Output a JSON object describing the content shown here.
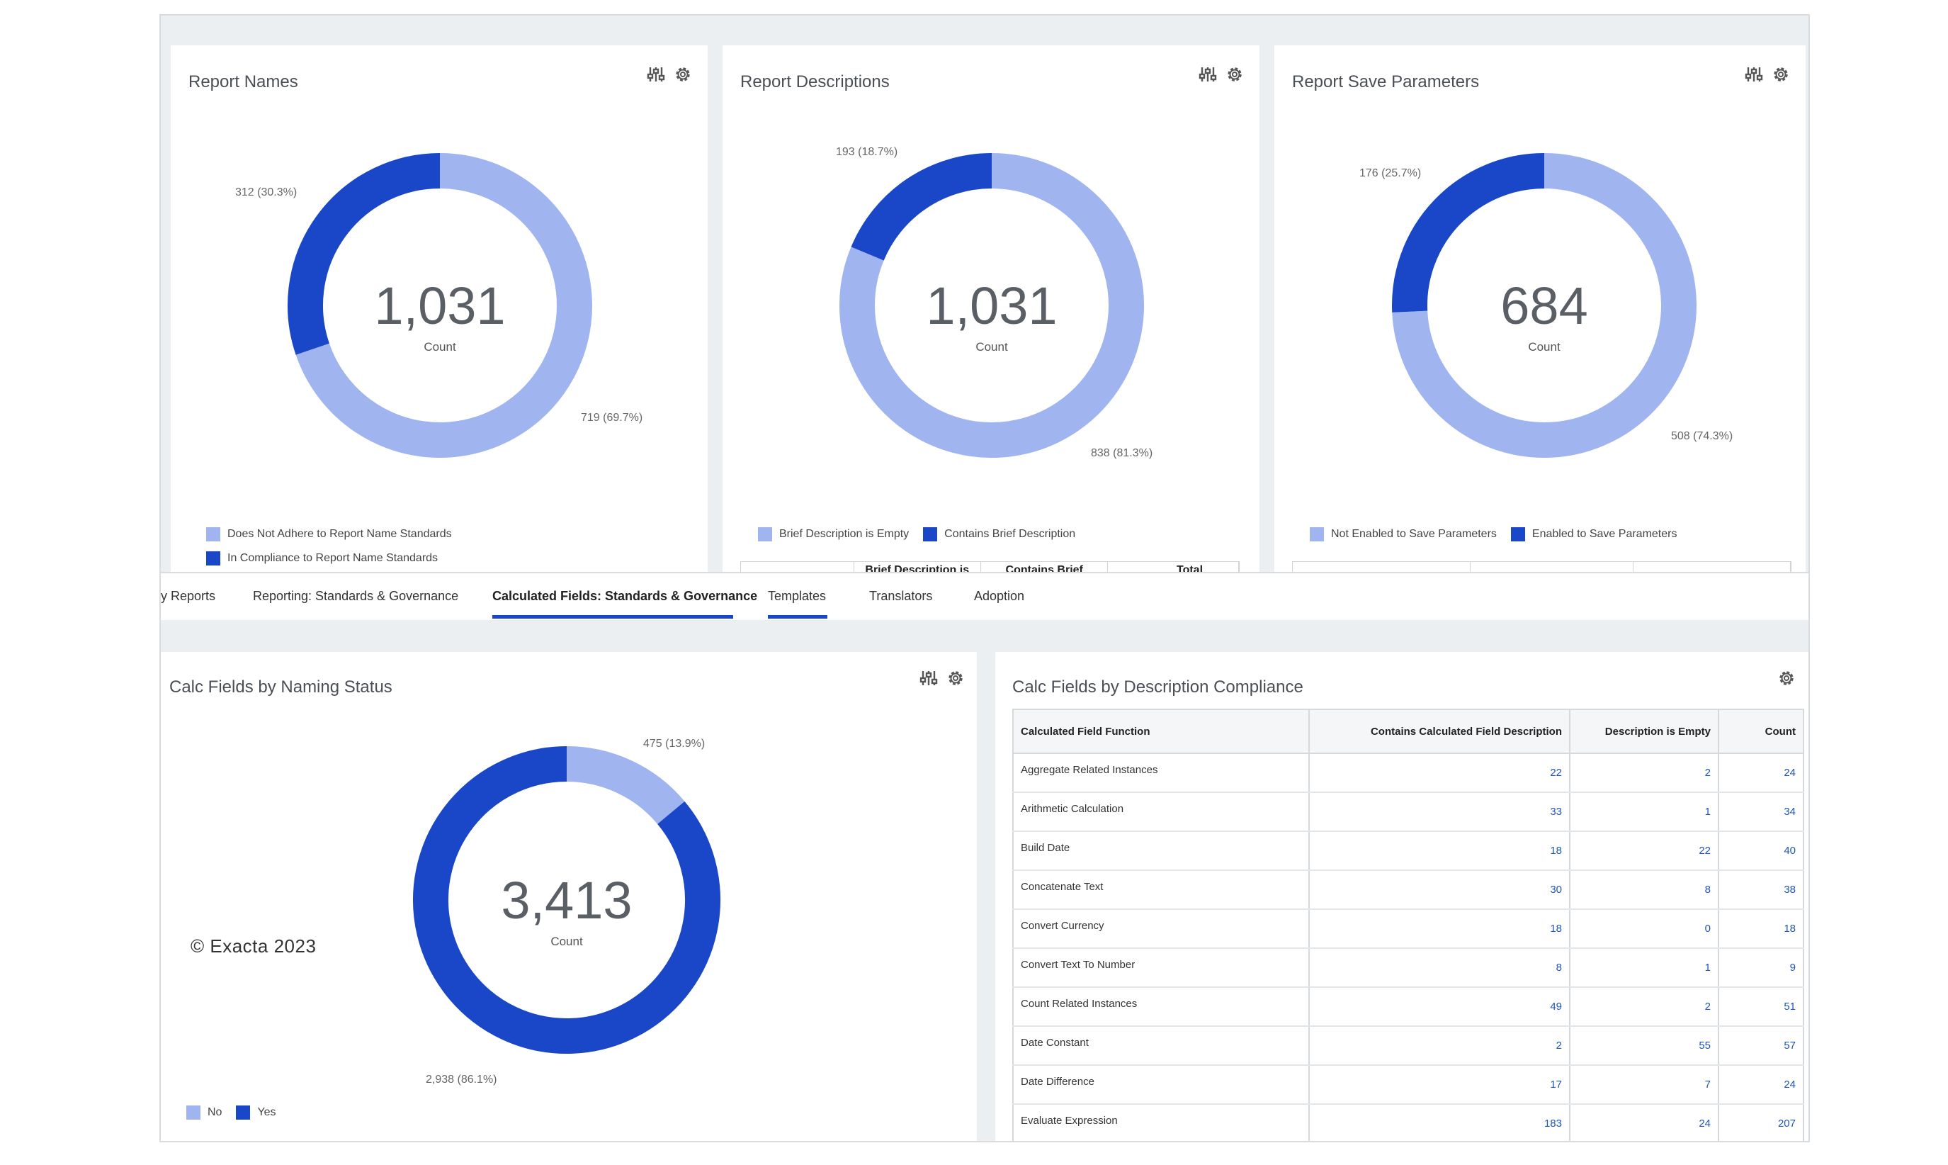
{
  "colors": {
    "light": "#a0b4f0",
    "dark": "#1a47c7",
    "link": "#1f55b5"
  },
  "cards": {
    "report_names": {
      "title": "Report Names",
      "total": "1,031",
      "sub": "Count",
      "slices": [
        {
          "label": "719 (69.7%)",
          "value": 719,
          "color": "#a0b4f0"
        },
        {
          "label": "312 (30.3%)",
          "value": 312,
          "color": "#1a47c7"
        }
      ],
      "legend": [
        "Does Not Adhere to Report Name Standards",
        "In Compliance to Report Name Standards"
      ]
    },
    "report_descriptions": {
      "title": "Report Descriptions",
      "total": "1,031",
      "sub": "Count",
      "slices": [
        {
          "label": "838 (81.3%)",
          "value": 838,
          "color": "#a0b4f0"
        },
        {
          "label": "193 (18.7%)",
          "value": 193,
          "color": "#1a47c7"
        }
      ],
      "legend": [
        "Brief Description is Empty",
        "Contains Brief Description"
      ],
      "table_headers": [
        "",
        "Brief Description is",
        "Contains Brief",
        "Total"
      ]
    },
    "report_save": {
      "title": "Report Save Parameters",
      "total": "684",
      "sub": "Count",
      "slices": [
        {
          "label": "508 (74.3%)",
          "value": 508,
          "color": "#a0b4f0"
        },
        {
          "label": "176 (25.7%)",
          "value": 176,
          "color": "#1a47c7"
        }
      ],
      "legend": [
        "Not Enabled to Save Parameters",
        "Enabled to Save Parameters"
      ]
    },
    "calc_naming": {
      "title": "Calc Fields by Naming Status",
      "total": "3,413",
      "sub": "Count",
      "slices": [
        {
          "label": "475 (13.9%)",
          "value": 475,
          "color": "#a0b4f0"
        },
        {
          "label": "2,938 (86.1%)",
          "value": 2938,
          "color": "#1a47c7"
        }
      ],
      "legend": [
        "No",
        "Yes"
      ],
      "copyright": "© Exacta 2023"
    },
    "calc_description": {
      "title": "Calc Fields by Description Compliance",
      "headers": [
        "Calculated Field Function",
        "Contains Calculated Field Description",
        "Description is Empty",
        "Count"
      ],
      "rows": [
        [
          "Aggregate Related Instances",
          "22",
          "2",
          "24"
        ],
        [
          "Arithmetic Calculation",
          "33",
          "1",
          "34"
        ],
        [
          "Build Date",
          "18",
          "22",
          "40"
        ],
        [
          "Concatenate Text",
          "30",
          "8",
          "38"
        ],
        [
          "Convert Currency",
          "18",
          "0",
          "18"
        ],
        [
          "Convert Text To Number",
          "8",
          "1",
          "9"
        ],
        [
          "Count Related Instances",
          "49",
          "2",
          "51"
        ],
        [
          "Date Constant",
          "2",
          "55",
          "57"
        ],
        [
          "Date Difference",
          "17",
          "7",
          "24"
        ],
        [
          "Evaluate Expression",
          "183",
          "24",
          "207"
        ]
      ]
    }
  },
  "tabs": [
    {
      "label": "y Reports",
      "active": false
    },
    {
      "label": "Reporting: Standards & Governance",
      "active": false
    },
    {
      "label": "Calculated Fields: Standards & Governance",
      "active": true
    },
    {
      "label": "Templates",
      "active": false
    },
    {
      "label": "Translators",
      "active": false
    },
    {
      "label": "Adoption",
      "active": false
    }
  ],
  "icons": {
    "filter": "sliders-icon",
    "settings": "gear-icon"
  }
}
